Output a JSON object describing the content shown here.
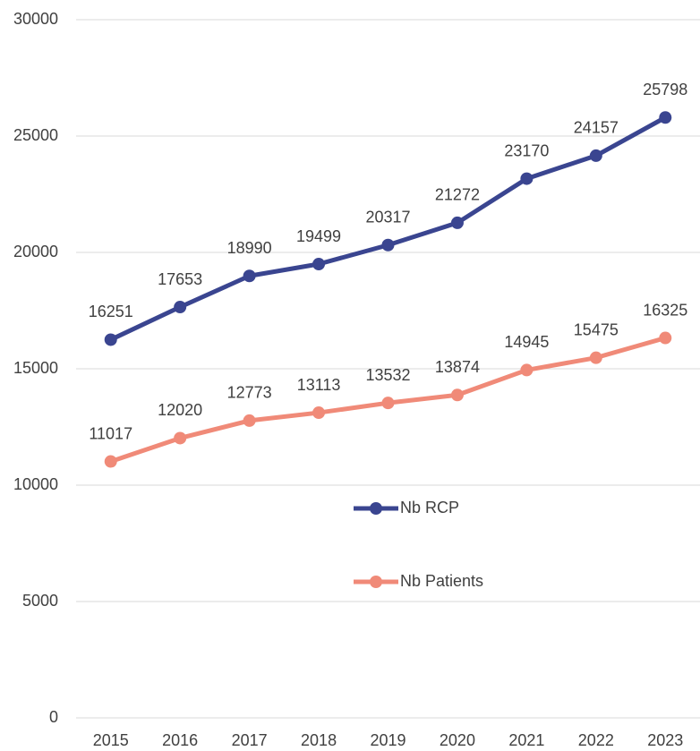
{
  "chart_data": {
    "type": "line",
    "categories": [
      "2015",
      "2016",
      "2017",
      "2018",
      "2019",
      "2020",
      "2021",
      "2022",
      "2023"
    ],
    "series": [
      {
        "name": "Nb RCP",
        "color": "#3a4590",
        "values": [
          16251,
          17653,
          18990,
          19499,
          20317,
          21272,
          23170,
          24157,
          25798
        ]
      },
      {
        "name": "Nb Patients",
        "color": "#f08a78",
        "values": [
          11017,
          12020,
          12773,
          13113,
          13532,
          13874,
          14945,
          15475,
          16325
        ]
      }
    ],
    "ylim": [
      0,
      30000
    ],
    "yticks": [
      0,
      5000,
      10000,
      15000,
      20000,
      25000,
      30000
    ],
    "grid": true,
    "legend": "center"
  }
}
